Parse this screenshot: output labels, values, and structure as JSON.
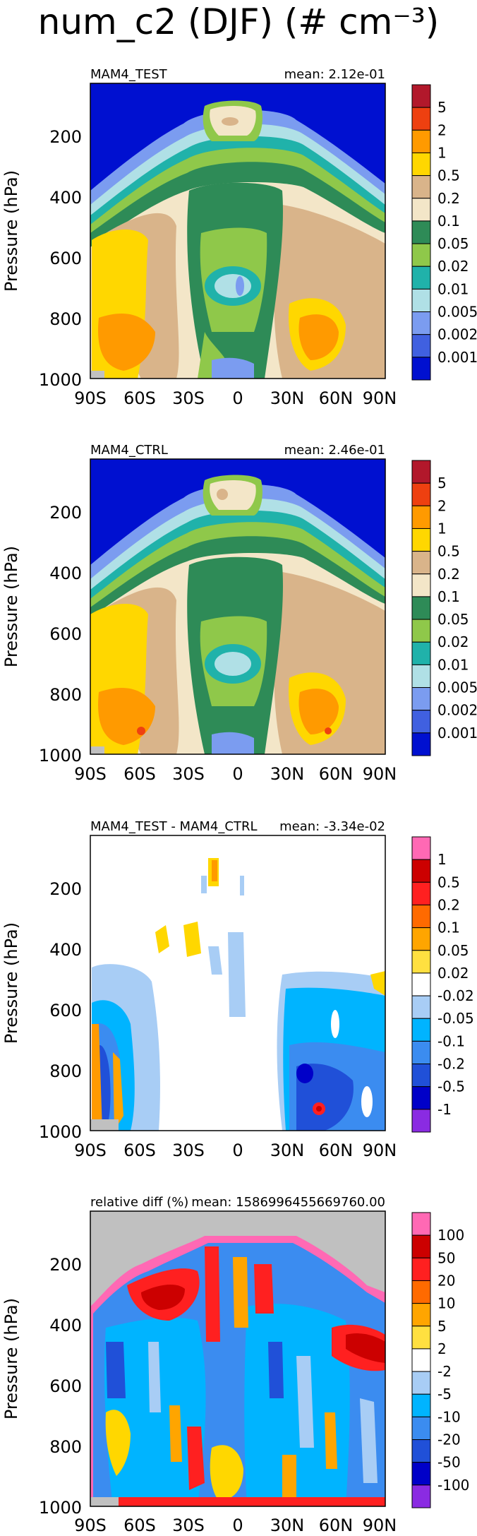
{
  "title": "num_c2 (DJF) (# cm⁻³)",
  "chart_data": [
    {
      "type": "heatmap",
      "left_label": "MAM4_TEST",
      "right_label": "mean: 2.12e-01",
      "ylabel": "Pressure (hPa)",
      "y_ticks": [
        "200",
        "400",
        "600",
        "800",
        "1000"
      ],
      "x_ticks": [
        "90S",
        "60S",
        "30S",
        "0",
        "30N",
        "60N",
        "90N"
      ],
      "ylim": [
        1000,
        50
      ],
      "levels": [
        "5",
        "2",
        "1",
        "0.5",
        "0.2",
        "0.1",
        "0.05",
        "0.02",
        "0.01",
        "0.005",
        "0.002",
        "0.001"
      ],
      "colors": [
        "#b2182b",
        "#ee4010",
        "#ff9a00",
        "#ffd700",
        "#d9b48a",
        "#f3e6c8",
        "#2e8b57",
        "#8fc84a",
        "#20b2aa",
        "#b0e0e6",
        "#7b9cf0",
        "#4060e0",
        "#0010d0"
      ]
    },
    {
      "type": "heatmap",
      "left_label": "MAM4_CTRL",
      "right_label": "mean: 2.46e-01",
      "ylabel": "Pressure (hPa)",
      "y_ticks": [
        "200",
        "400",
        "600",
        "800",
        "1000"
      ],
      "x_ticks": [
        "90S",
        "60S",
        "30S",
        "0",
        "30N",
        "60N",
        "90N"
      ],
      "ylim": [
        1000,
        50
      ],
      "levels": [
        "5",
        "2",
        "1",
        "0.5",
        "0.2",
        "0.1",
        "0.05",
        "0.02",
        "0.01",
        "0.005",
        "0.002",
        "0.001"
      ],
      "colors": [
        "#b2182b",
        "#ee4010",
        "#ff9a00",
        "#ffd700",
        "#d9b48a",
        "#f3e6c8",
        "#2e8b57",
        "#8fc84a",
        "#20b2aa",
        "#b0e0e6",
        "#7b9cf0",
        "#4060e0",
        "#0010d0"
      ]
    },
    {
      "type": "heatmap",
      "left_label": "MAM4_TEST - MAM4_CTRL",
      "right_label": "mean: -3.34e-02",
      "ylabel": "Pressure (hPa)",
      "y_ticks": [
        "200",
        "400",
        "600",
        "800",
        "1000"
      ],
      "x_ticks": [
        "90S",
        "60S",
        "30S",
        "0",
        "30N",
        "60N",
        "90N"
      ],
      "ylim": [
        1000,
        50
      ],
      "levels": [
        "1",
        "0.5",
        "0.2",
        "0.1",
        "0.05",
        "0.02",
        "-0.02",
        "-0.05",
        "-0.1",
        "-0.2",
        "-0.5",
        "-1"
      ],
      "colors": [
        "#ff69b4",
        "#cc0000",
        "#ff2020",
        "#ff6a00",
        "#ffa500",
        "#ffe040",
        "#ffffff",
        "#a8cdf5",
        "#00b4ff",
        "#3b8cf0",
        "#2050d8",
        "#0000c8",
        "#8a2be2"
      ]
    },
    {
      "type": "heatmap",
      "left_label": "relative diff (%)",
      "right_label": "mean: 1586996455669760.00",
      "ylabel": "Pressure (hPa)",
      "y_ticks": [
        "200",
        "400",
        "600",
        "800",
        "1000"
      ],
      "x_ticks": [
        "90S",
        "60S",
        "30S",
        "0",
        "30N",
        "60N",
        "90N"
      ],
      "ylim": [
        1000,
        50
      ],
      "levels": [
        "100",
        "50",
        "20",
        "10",
        "5",
        "2",
        "-2",
        "-5",
        "-10",
        "-20",
        "-50",
        "-100"
      ],
      "colors": [
        "#ff69b4",
        "#cc0000",
        "#ff2020",
        "#ff6a00",
        "#ffa500",
        "#ffe040",
        "#ffffff",
        "#a8cdf5",
        "#00b4ff",
        "#3b8cf0",
        "#2050d8",
        "#0000c8",
        "#8a2be2"
      ]
    }
  ]
}
